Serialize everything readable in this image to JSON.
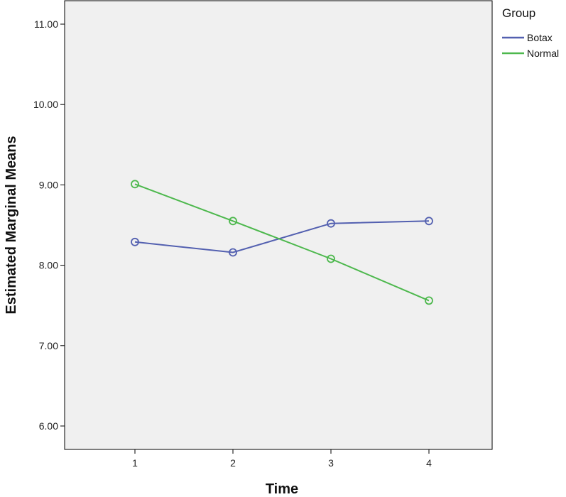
{
  "chart_data": {
    "type": "line",
    "xlabel": "Time",
    "ylabel": "Estimated Marginal Means",
    "categories": [
      "1",
      "2",
      "3",
      "4"
    ],
    "ylim": [
      5.7,
      11.3
    ],
    "yticks": [
      6.0,
      7.0,
      8.0,
      9.0,
      10.0,
      11.0
    ],
    "ytick_labels": [
      "6.00",
      "7.00",
      "8.00",
      "9.00",
      "10.00",
      "11.00"
    ],
    "grid": false,
    "legend": {
      "title": "Group",
      "placement": "top-right"
    },
    "series": [
      {
        "name": "Botax",
        "color": "#5360b0",
        "values": [
          8.29,
          8.16,
          8.52,
          8.55
        ]
      },
      {
        "name": "Normal",
        "color": "#4db84d",
        "values": [
          9.01,
          8.55,
          8.08,
          7.56
        ]
      }
    ]
  },
  "colors": {
    "plot_background": "#f0f0f0",
    "axis": "#000000"
  }
}
